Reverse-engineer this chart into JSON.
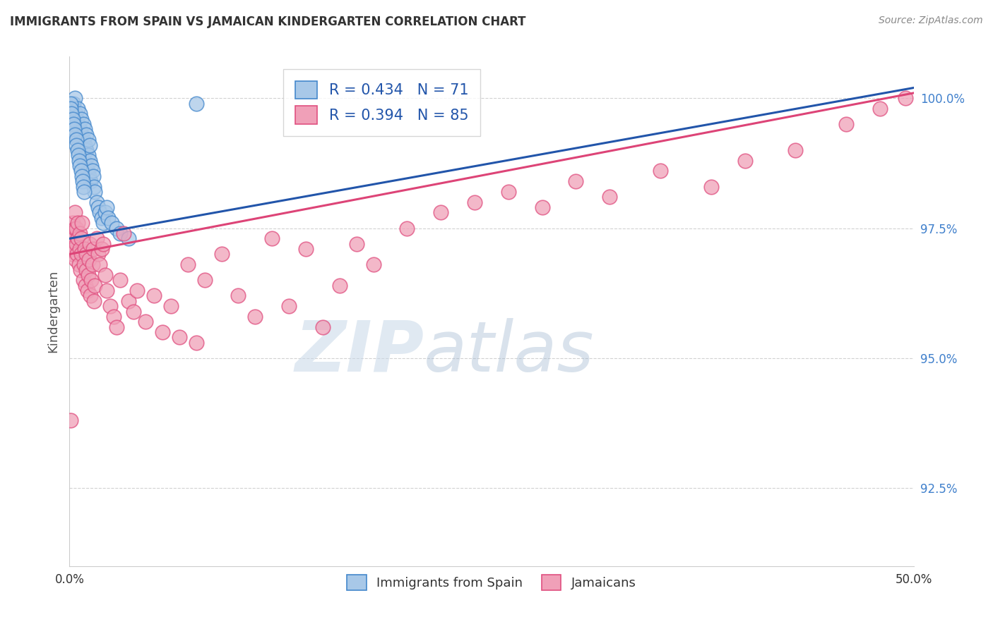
{
  "title": "IMMIGRANTS FROM SPAIN VS JAMAICAN KINDERGARTEN CORRELATION CHART",
  "source": "Source: ZipAtlas.com",
  "ylabel": "Kindergarten",
  "xmin": 0.0,
  "xmax": 50.0,
  "ymin": 91.0,
  "ymax": 100.8,
  "yticks": [
    92.5,
    95.0,
    97.5,
    100.0
  ],
  "xticks": [
    0.0,
    12.5,
    25.0,
    37.5,
    50.0
  ],
  "xtick_labels": [
    "0.0%",
    "",
    "",
    "",
    "50.0%"
  ],
  "ytick_labels": [
    "92.5%",
    "95.0%",
    "97.5%",
    "100.0%"
  ],
  "blue_color": "#a8c8e8",
  "pink_color": "#f0a0b8",
  "blue_edge_color": "#4488cc",
  "pink_edge_color": "#e05080",
  "blue_line_color": "#2255aa",
  "pink_line_color": "#dd4477",
  "legend_blue_text": "R = 0.434   N = 71",
  "legend_pink_text": "R = 0.394   N = 85",
  "legend_blue_label": "Immigrants from Spain",
  "legend_pink_label": "Jamaicans",
  "watermark_zip": "ZIP",
  "watermark_atlas": "atlas",
  "blue_scatter_x": [
    0.1,
    0.15,
    0.2,
    0.25,
    0.3,
    0.3,
    0.35,
    0.35,
    0.4,
    0.4,
    0.45,
    0.5,
    0.5,
    0.55,
    0.6,
    0.6,
    0.65,
    0.7,
    0.7,
    0.75,
    0.8,
    0.8,
    0.85,
    0.9,
    0.9,
    0.95,
    1.0,
    1.0,
    1.05,
    1.1,
    1.1,
    1.15,
    1.2,
    1.2,
    1.25,
    1.3,
    1.35,
    1.4,
    1.45,
    1.5,
    1.6,
    1.7,
    1.8,
    1.9,
    2.0,
    2.1,
    2.2,
    2.3,
    2.5,
    2.8,
    3.0,
    3.5,
    0.05,
    0.08,
    0.12,
    0.18,
    0.22,
    0.28,
    0.32,
    0.38,
    0.42,
    0.48,
    0.52,
    0.58,
    0.62,
    0.68,
    0.72,
    0.78,
    0.82,
    0.88,
    7.5
  ],
  "blue_scatter_y": [
    99.7,
    99.8,
    99.6,
    99.9,
    99.5,
    100.0,
    99.4,
    99.7,
    99.3,
    99.6,
    99.2,
    99.5,
    99.8,
    99.1,
    99.4,
    99.7,
    99.0,
    99.3,
    99.6,
    98.9,
    99.2,
    99.5,
    98.8,
    99.1,
    99.4,
    98.7,
    99.0,
    99.3,
    98.6,
    98.9,
    99.2,
    98.5,
    98.8,
    99.1,
    98.4,
    98.7,
    98.6,
    98.5,
    98.3,
    98.2,
    98.0,
    97.9,
    97.8,
    97.7,
    97.6,
    97.8,
    97.9,
    97.7,
    97.6,
    97.5,
    97.4,
    97.3,
    99.9,
    99.8,
    99.7,
    99.6,
    99.5,
    99.4,
    99.3,
    99.2,
    99.1,
    99.0,
    98.9,
    98.8,
    98.7,
    98.6,
    98.5,
    98.4,
    98.3,
    98.2,
    99.9
  ],
  "pink_scatter_x": [
    0.05,
    0.1,
    0.15,
    0.2,
    0.2,
    0.25,
    0.3,
    0.3,
    0.35,
    0.4,
    0.4,
    0.45,
    0.5,
    0.5,
    0.55,
    0.6,
    0.6,
    0.65,
    0.7,
    0.7,
    0.75,
    0.8,
    0.85,
    0.9,
    0.95,
    1.0,
    1.0,
    1.05,
    1.1,
    1.15,
    1.2,
    1.25,
    1.3,
    1.35,
    1.4,
    1.45,
    1.5,
    1.6,
    1.7,
    1.8,
    1.9,
    2.0,
    2.1,
    2.2,
    2.4,
    2.6,
    2.8,
    3.0,
    3.2,
    3.5,
    3.8,
    4.0,
    4.5,
    5.0,
    5.5,
    6.0,
    6.5,
    7.0,
    7.5,
    8.0,
    9.0,
    10.0,
    11.0,
    12.0,
    13.0,
    14.0,
    15.0,
    16.0,
    17.0,
    18.0,
    20.0,
    22.0,
    24.0,
    26.0,
    28.0,
    30.0,
    32.0,
    35.0,
    38.0,
    40.0,
    43.0,
    46.0,
    48.0,
    49.5,
    0.08
  ],
  "pink_scatter_y": [
    97.2,
    97.4,
    97.0,
    97.3,
    97.6,
    97.1,
    97.5,
    97.8,
    96.9,
    97.2,
    97.5,
    97.0,
    97.3,
    97.6,
    96.8,
    97.1,
    97.4,
    96.7,
    97.0,
    97.3,
    97.6,
    96.5,
    96.8,
    97.1,
    96.4,
    96.7,
    97.0,
    96.3,
    96.6,
    96.9,
    97.2,
    96.2,
    96.5,
    96.8,
    97.1,
    96.1,
    96.4,
    97.3,
    97.0,
    96.8,
    97.1,
    97.2,
    96.6,
    96.3,
    96.0,
    95.8,
    95.6,
    96.5,
    97.4,
    96.1,
    95.9,
    96.3,
    95.7,
    96.2,
    95.5,
    96.0,
    95.4,
    96.8,
    95.3,
    96.5,
    97.0,
    96.2,
    95.8,
    97.3,
    96.0,
    97.1,
    95.6,
    96.4,
    97.2,
    96.8,
    97.5,
    97.8,
    98.0,
    98.2,
    97.9,
    98.4,
    98.1,
    98.6,
    98.3,
    98.8,
    99.0,
    99.5,
    99.8,
    100.0,
    93.8
  ]
}
